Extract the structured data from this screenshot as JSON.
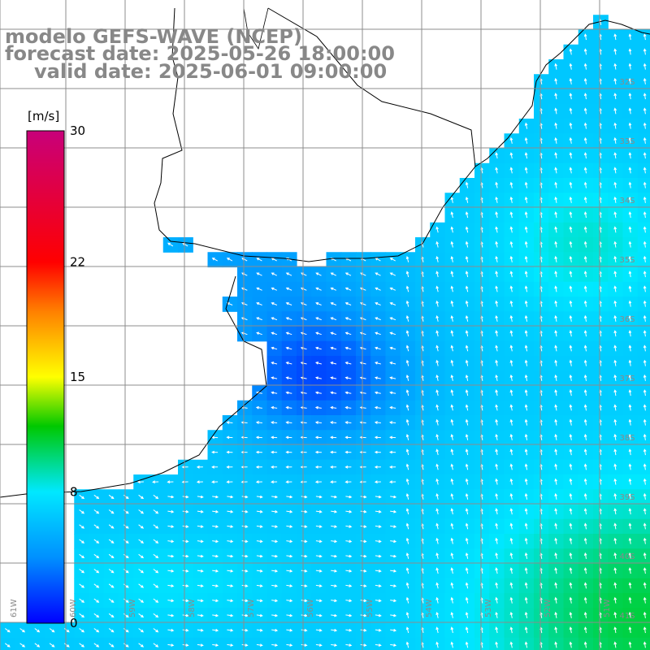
{
  "title": {
    "line1": "modelo GEFS-WAVE (NCEP)",
    "line2": "forecast date: 2025-05-26 18:00:00",
    "line3": "valid date: 2025-06-01 09:00:00"
  },
  "colorbar": {
    "unit": "[m/s]",
    "ticks": [
      "30",
      "22",
      "15",
      "8",
      "0"
    ],
    "tick_values": [
      30,
      22,
      15,
      8,
      0
    ],
    "range": [
      0,
      30
    ],
    "colors": [
      "#0000ff",
      "#0090ff",
      "#00e8ff",
      "#00c800",
      "#ffff00",
      "#ff8000",
      "#ff0000",
      "#c8007a"
    ]
  },
  "map": {
    "variable": "wind speed and direction",
    "lat_labels": [
      "32S",
      "33S",
      "34S",
      "35S",
      "36S",
      "37S",
      "38S",
      "39S",
      "40S",
      "41S"
    ],
    "lon_labels": [
      "61W",
      "60W",
      "59W",
      "58W",
      "57W",
      "56W",
      "55W",
      "54W",
      "53W",
      "52W",
      "51W"
    ]
  }
}
